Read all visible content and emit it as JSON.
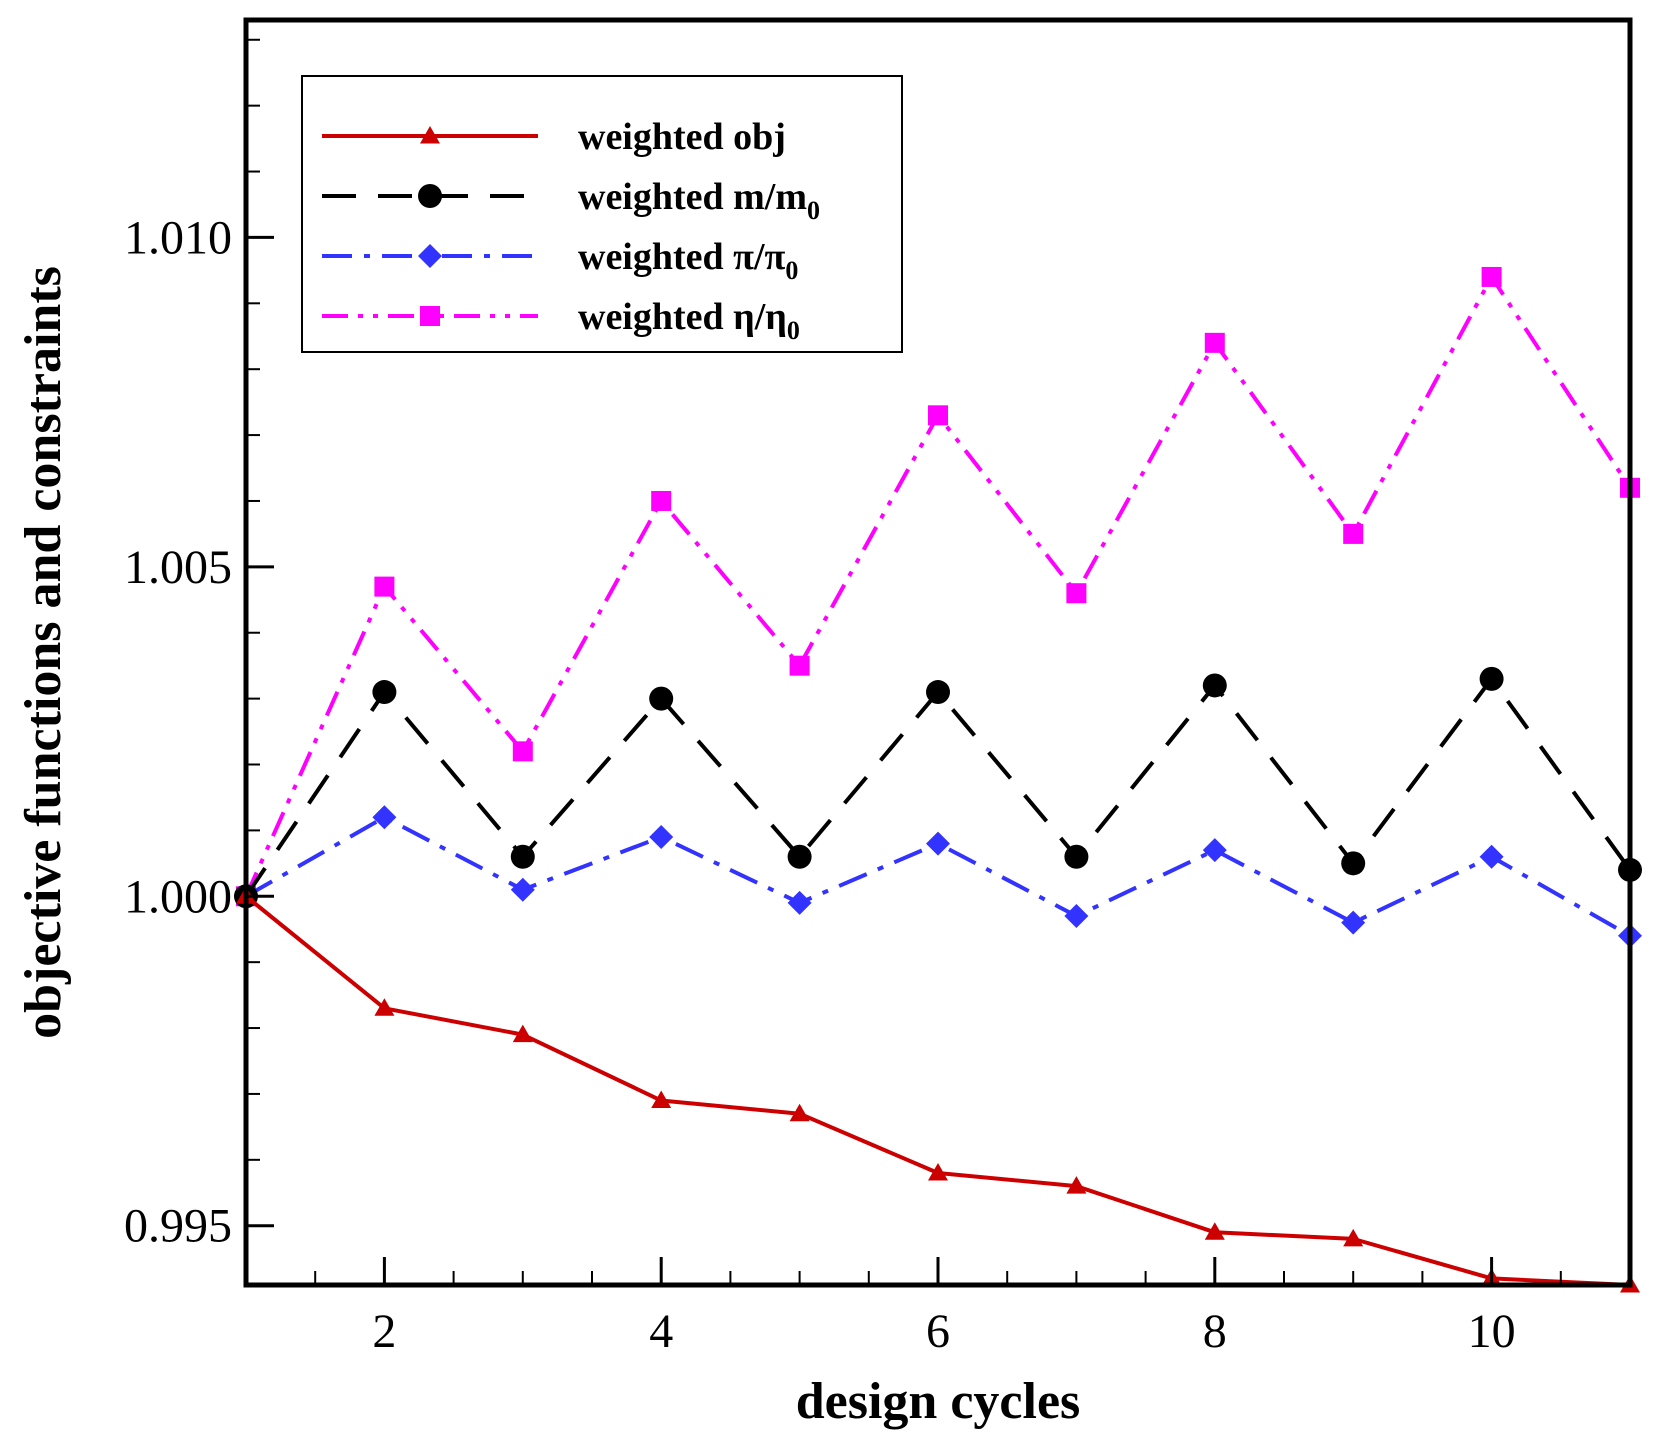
{
  "chart_data": {
    "type": "line",
    "xlabel": "design cycles",
    "ylabel": "objective functions and constraints",
    "xlim": [
      1,
      11
    ],
    "ylim": [
      0.9941,
      1.0133
    ],
    "x_ticks": [
      2,
      4,
      6,
      8,
      10
    ],
    "y_ticks": [
      0.995,
      1.0,
      1.005,
      1.01
    ],
    "y_tick_labels": [
      "0.995",
      "1.000",
      "1.005",
      "1.010"
    ],
    "x": [
      1,
      2,
      3,
      4,
      5,
      6,
      7,
      8,
      9,
      10,
      11
    ],
    "series": [
      {
        "name": "weighted obj",
        "legend_base": "weighted obj",
        "legend_sub": "",
        "color": "#cc0000",
        "dash": "solid",
        "marker": "triangle",
        "values": [
          1.0,
          0.9983,
          0.9979,
          0.9969,
          0.9967,
          0.9958,
          0.9956,
          0.9949,
          0.9948,
          0.9942,
          0.9941
        ]
      },
      {
        "name": "weighted m/m0",
        "legend_base": "weighted m/m",
        "legend_sub": "0",
        "color": "#000000",
        "dash": "dashed",
        "marker": "circle",
        "values": [
          1.0,
          1.0031,
          1.0006,
          1.003,
          1.0006,
          1.0031,
          1.0006,
          1.0032,
          1.0005,
          1.0033,
          1.0004
        ]
      },
      {
        "name": "weighted π/π0",
        "legend_base": "weighted π/π",
        "legend_sub": "0",
        "color": "#3333ff",
        "dash": "dashdot",
        "marker": "diamond",
        "values": [
          1.0,
          1.0012,
          1.0001,
          1.0009,
          0.9999,
          1.0008,
          0.9997,
          1.0007,
          0.9996,
          1.0006,
          0.9994
        ]
      },
      {
        "name": "weighted η/η0",
        "legend_base": "weighted η/η",
        "legend_sub": "0",
        "color": "#ff00ff",
        "dash": "dashdotdot",
        "marker": "square",
        "values": [
          1.0,
          1.0047,
          1.0022,
          1.006,
          1.0035,
          1.0073,
          1.0046,
          1.0084,
          1.0055,
          1.0094,
          1.0062
        ]
      }
    ],
    "legend_position": "top-left"
  }
}
